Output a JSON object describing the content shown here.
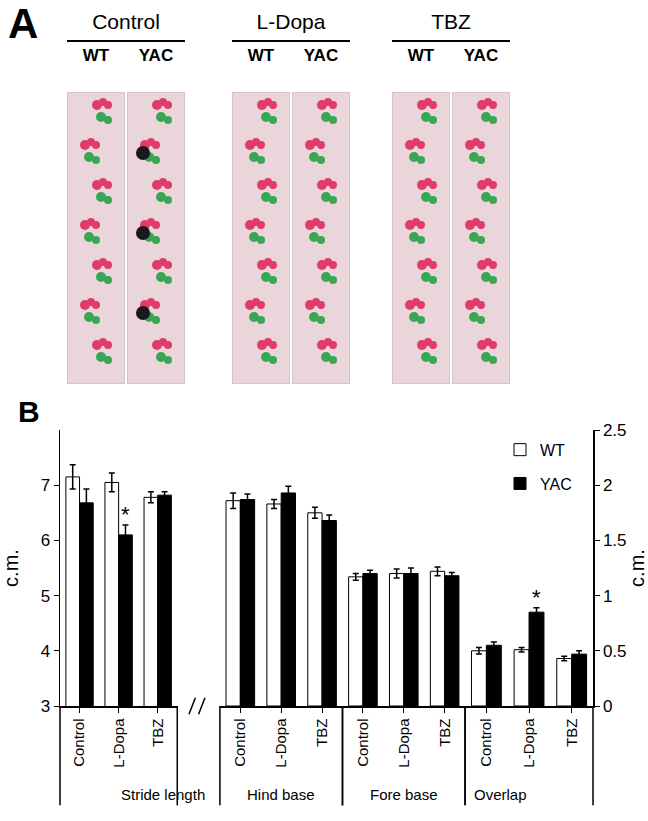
{
  "panel_a": {
    "label": "A",
    "groups": [
      {
        "title": "Control",
        "lanes": [
          "WT",
          "YAC"
        ]
      },
      {
        "title": "L-Dopa",
        "lanes": [
          "WT",
          "YAC"
        ]
      },
      {
        "title": "TBZ",
        "lanes": [
          "WT",
          "YAC"
        ]
      }
    ]
  },
  "chart_data": {
    "type": "bar",
    "label": "B",
    "y_title": "c.m.",
    "y2_title": "c.m.",
    "ylim": [
      3,
      8
    ],
    "yticks": [
      3,
      4,
      5,
      6,
      7
    ],
    "y2lim": [
      0,
      2.5
    ],
    "y2ticks": [
      0,
      0.5,
      1,
      1.5,
      2,
      2.5
    ],
    "grid": false,
    "legend": "top right",
    "groups": [
      {
        "name": "Stride length",
        "axis": "y",
        "categories": [
          "Control",
          "L-Dopa",
          "TBZ"
        ],
        "series": [
          {
            "name": "WT",
            "color": "#ffffff",
            "values": [
              7.15,
              7.05,
              6.78
            ],
            "errors": [
              0.22,
              0.17,
              0.1
            ],
            "significance": [
              null,
              null,
              null
            ]
          },
          {
            "name": "YAC",
            "color": "#000000",
            "values": [
              6.68,
              6.1,
              6.82
            ],
            "errors": [
              0.25,
              0.18,
              0.06
            ],
            "significance": [
              null,
              "*",
              null
            ]
          }
        ]
      },
      {
        "name": "Hind base",
        "axis": "y2",
        "categories": [
          "Control",
          "L-Dopa",
          "TBZ"
        ],
        "series": [
          {
            "name": "WT",
            "color": "#ffffff",
            "values": [
              1.86,
              1.83,
              1.75
            ],
            "errors": [
              0.07,
              0.04,
              0.05
            ],
            "significance": [
              null,
              null,
              null
            ]
          },
          {
            "name": "YAC",
            "color": "#000000",
            "values": [
              1.87,
              1.93,
              1.68
            ],
            "errors": [
              0.05,
              0.06,
              0.05
            ],
            "significance": [
              null,
              null,
              null
            ]
          }
        ]
      },
      {
        "name": "Fore base",
        "axis": "y2",
        "categories": [
          "Control",
          "L-Dopa",
          "TBZ"
        ],
        "series": [
          {
            "name": "WT",
            "color": "#ffffff",
            "values": [
              1.17,
              1.2,
              1.22
            ],
            "errors": [
              0.03,
              0.04,
              0.04
            ],
            "significance": [
              null,
              null,
              null
            ]
          },
          {
            "name": "YAC",
            "color": "#000000",
            "values": [
              1.2,
              1.2,
              1.18
            ],
            "errors": [
              0.03,
              0.05,
              0.03
            ],
            "significance": [
              null,
              null,
              null
            ]
          }
        ]
      },
      {
        "name": "Overlap",
        "axis": "y2",
        "categories": [
          "Control",
          "L-Dopa",
          "TBZ"
        ],
        "series": [
          {
            "name": "WT",
            "color": "#ffffff",
            "values": [
              0.5,
              0.51,
              0.43
            ],
            "errors": [
              0.03,
              0.02,
              0.02
            ],
            "significance": [
              null,
              null,
              null
            ]
          },
          {
            "name": "YAC",
            "color": "#000000",
            "values": [
              0.55,
              0.85,
              0.47
            ],
            "errors": [
              0.03,
              0.04,
              0.03
            ],
            "significance": [
              null,
              "*",
              null
            ]
          }
        ]
      }
    ]
  }
}
